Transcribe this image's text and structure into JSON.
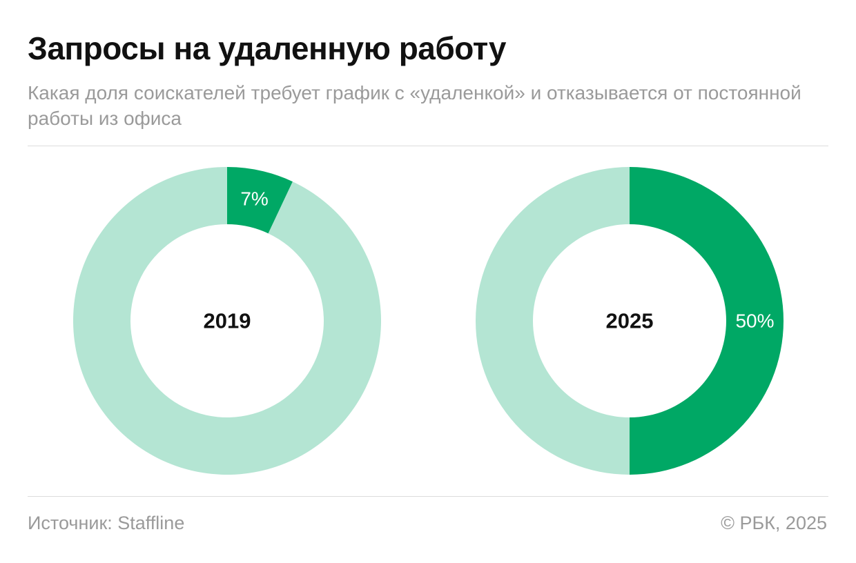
{
  "header": {
    "title": "Запросы на удаленную работу",
    "subtitle": "Какая доля соискателей требует график с «удаленкой» и отказывается от постоянной работы из офиса"
  },
  "footer": {
    "source": "Источник: Staffline",
    "copyright": "© РБК, 2025"
  },
  "colors": {
    "accent": "#00a865",
    "remainder": "#b4e5d3",
    "center_label": "#111111",
    "value_label": "#ffffff"
  },
  "chart_data": [
    {
      "type": "pie",
      "center_label": "2019",
      "values": [
        7,
        93
      ],
      "value_labels": [
        "7%",
        ""
      ],
      "colors": [
        "#00a865",
        "#b4e5d3"
      ]
    },
    {
      "type": "pie",
      "center_label": "2025",
      "values": [
        50,
        50
      ],
      "value_labels": [
        "50%",
        ""
      ],
      "colors": [
        "#00a865",
        "#b4e5d3"
      ]
    }
  ]
}
